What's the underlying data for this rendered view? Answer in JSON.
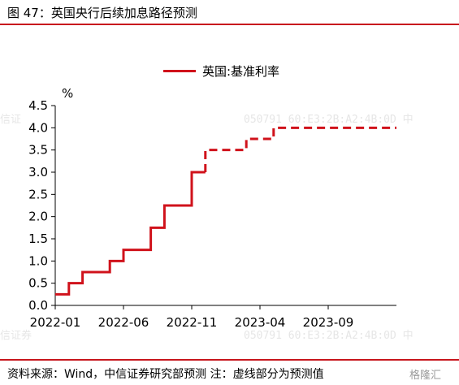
{
  "figure": {
    "title": "图 47：英国央行后续加息路径预测",
    "source": "资料来源：Wind，中信证券研究部预测 注：虚线部分为预测值",
    "logo": "格隆汇"
  },
  "watermarks": [
    "信证",
    "050791 60:E3:2B:A2:4B:0D 中",
    "信证券",
    "050791 60:E3:2B:A2:4B:0D 中"
  ],
  "chart_data": {
    "type": "line",
    "title": "",
    "xlabel": "",
    "ylabel": "%",
    "line_style": "step",
    "ylim": [
      0,
      4.5
    ],
    "yticks": [
      0.0,
      0.5,
      1.0,
      1.5,
      2.0,
      2.5,
      3.0,
      3.5,
      4.0,
      4.5
    ],
    "ytick_labels": [
      "0.0",
      "0.5",
      "1.0",
      "1.5",
      "2.0",
      "2.5",
      "3.0",
      "3.5",
      "4.0",
      "4.5"
    ],
    "xlim": [
      "2022-01",
      "2024-02"
    ],
    "xticks": [
      "2022-01",
      "2022-06",
      "2022-11",
      "2023-04",
      "2023-09"
    ],
    "xtick_labels": [
      "2022-01",
      "2022-06",
      "2022-11",
      "2023-04",
      "2023-09"
    ],
    "legend_position": "top-center",
    "grid": false,
    "series": [
      {
        "name": "英国:基准利率",
        "color": "#d0121b",
        "actual": {
          "x": [
            "2022-01",
            "2022-02",
            "2022-03",
            "2022-05",
            "2022-06",
            "2022-08",
            "2022-09",
            "2022-11",
            "2022-12"
          ],
          "y": [
            0.25,
            0.5,
            0.75,
            1.0,
            1.25,
            1.75,
            2.25,
            3.0,
            3.0
          ]
        },
        "forecast": {
          "x": [
            "2022-12",
            "2023-02",
            "2023-03",
            "2023-05",
            "2024-02"
          ],
          "y": [
            3.5,
            3.5,
            3.75,
            4.0,
            4.0
          ]
        }
      }
    ]
  }
}
